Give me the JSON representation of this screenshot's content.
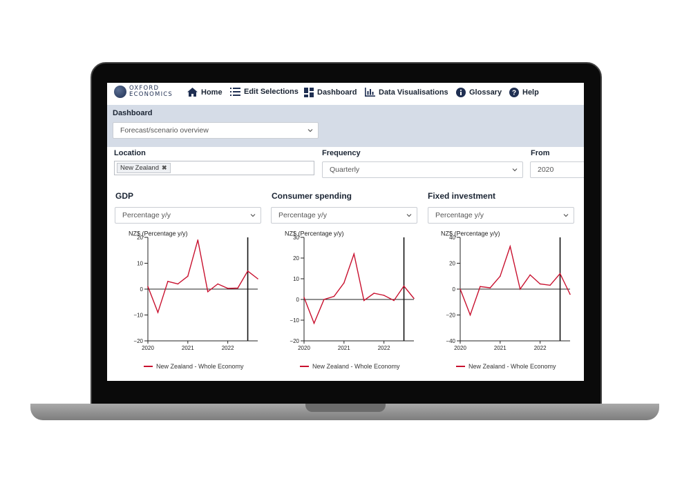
{
  "logo": {
    "line1": "OXFORD",
    "line2": "ECONOMICS"
  },
  "nav": {
    "home": "Home",
    "edit_selections": "Edit Selections",
    "dashboard": "Dashboard",
    "data_visualisations": "Data Visualisations",
    "glossary": "Glossary",
    "help": "Help"
  },
  "dashboard": {
    "label": "Dashboard",
    "selected": "Forecast/scenario overview"
  },
  "location": {
    "label": "Location",
    "tags": [
      "New Zealand"
    ]
  },
  "frequency": {
    "label": "Frequency",
    "selected": "Quarterly"
  },
  "from": {
    "label": "From",
    "value": "2020"
  },
  "colors": {
    "series": "#c8102e",
    "band": "#d5dce7",
    "text": "#1a2433"
  },
  "charts": [
    {
      "title": "GDP",
      "measure": "Percentage y/y"
    },
    {
      "title": "Consumer spending",
      "measure": "Percentage y/y"
    },
    {
      "title": "Fixed investment",
      "measure": "Percentage y/y"
    }
  ],
  "chart_data": [
    {
      "type": "line",
      "title": "GDP",
      "ylabel": "NZ$ (Percentage y/y)",
      "ylim": [
        -20,
        20
      ],
      "yticks": [
        20,
        10,
        0,
        -10,
        -20
      ],
      "xlim": [
        2020,
        2022.75
      ],
      "xticks": [
        "2020",
        "2021",
        "2022"
      ],
      "forecast_marker_x": 2022.5,
      "series": [
        {
          "name": "New Zealand - Whole Economy",
          "x": [
            2020,
            2020.25,
            2020.5,
            2020.75,
            2021,
            2021.25,
            2021.5,
            2021.75,
            2022,
            2022.25,
            2022.5,
            2022.75
          ],
          "values": [
            1,
            -9,
            3,
            2,
            5,
            19,
            -1,
            2,
            0.3,
            0.4,
            7,
            4
          ]
        }
      ]
    },
    {
      "type": "line",
      "title": "Consumer spending",
      "ylabel": "NZ$ (Percentage y/y)",
      "ylim": [
        -20,
        30
      ],
      "yticks": [
        30,
        20,
        10,
        0,
        -10,
        -20
      ],
      "xlim": [
        2020,
        2022.75
      ],
      "xticks": [
        "2020",
        "2021",
        "2022"
      ],
      "forecast_marker_x": 2022.5,
      "series": [
        {
          "name": "New Zealand - Whole Economy",
          "x": [
            2020,
            2020.25,
            2020.5,
            2020.75,
            2021,
            2021.25,
            2021.5,
            2021.75,
            2022,
            2022.25,
            2022.5,
            2022.75
          ],
          "values": [
            1,
            -11.5,
            0,
            1.5,
            8,
            22,
            -0.5,
            3,
            2,
            -0.5,
            6.5,
            0.5
          ]
        }
      ]
    },
    {
      "type": "line",
      "title": "Fixed investment",
      "ylabel": "NZ$ (Percentage y/y)",
      "ylim": [
        -40,
        40
      ],
      "yticks": [
        40,
        20,
        0,
        -20,
        -40
      ],
      "xlim": [
        2020,
        2022.75
      ],
      "xticks": [
        "2020",
        "2021",
        "2022"
      ],
      "forecast_marker_x": 2022.5,
      "series": [
        {
          "name": "New Zealand - Whole Economy",
          "x": [
            2020,
            2020.25,
            2020.5,
            2020.75,
            2021,
            2021.25,
            2021.5,
            2021.75,
            2022,
            2022.25,
            2022.5,
            2022.75
          ],
          "values": [
            0,
            -20,
            2,
            1,
            10,
            33,
            0,
            11,
            4,
            3,
            12,
            -4
          ]
        }
      ]
    }
  ]
}
